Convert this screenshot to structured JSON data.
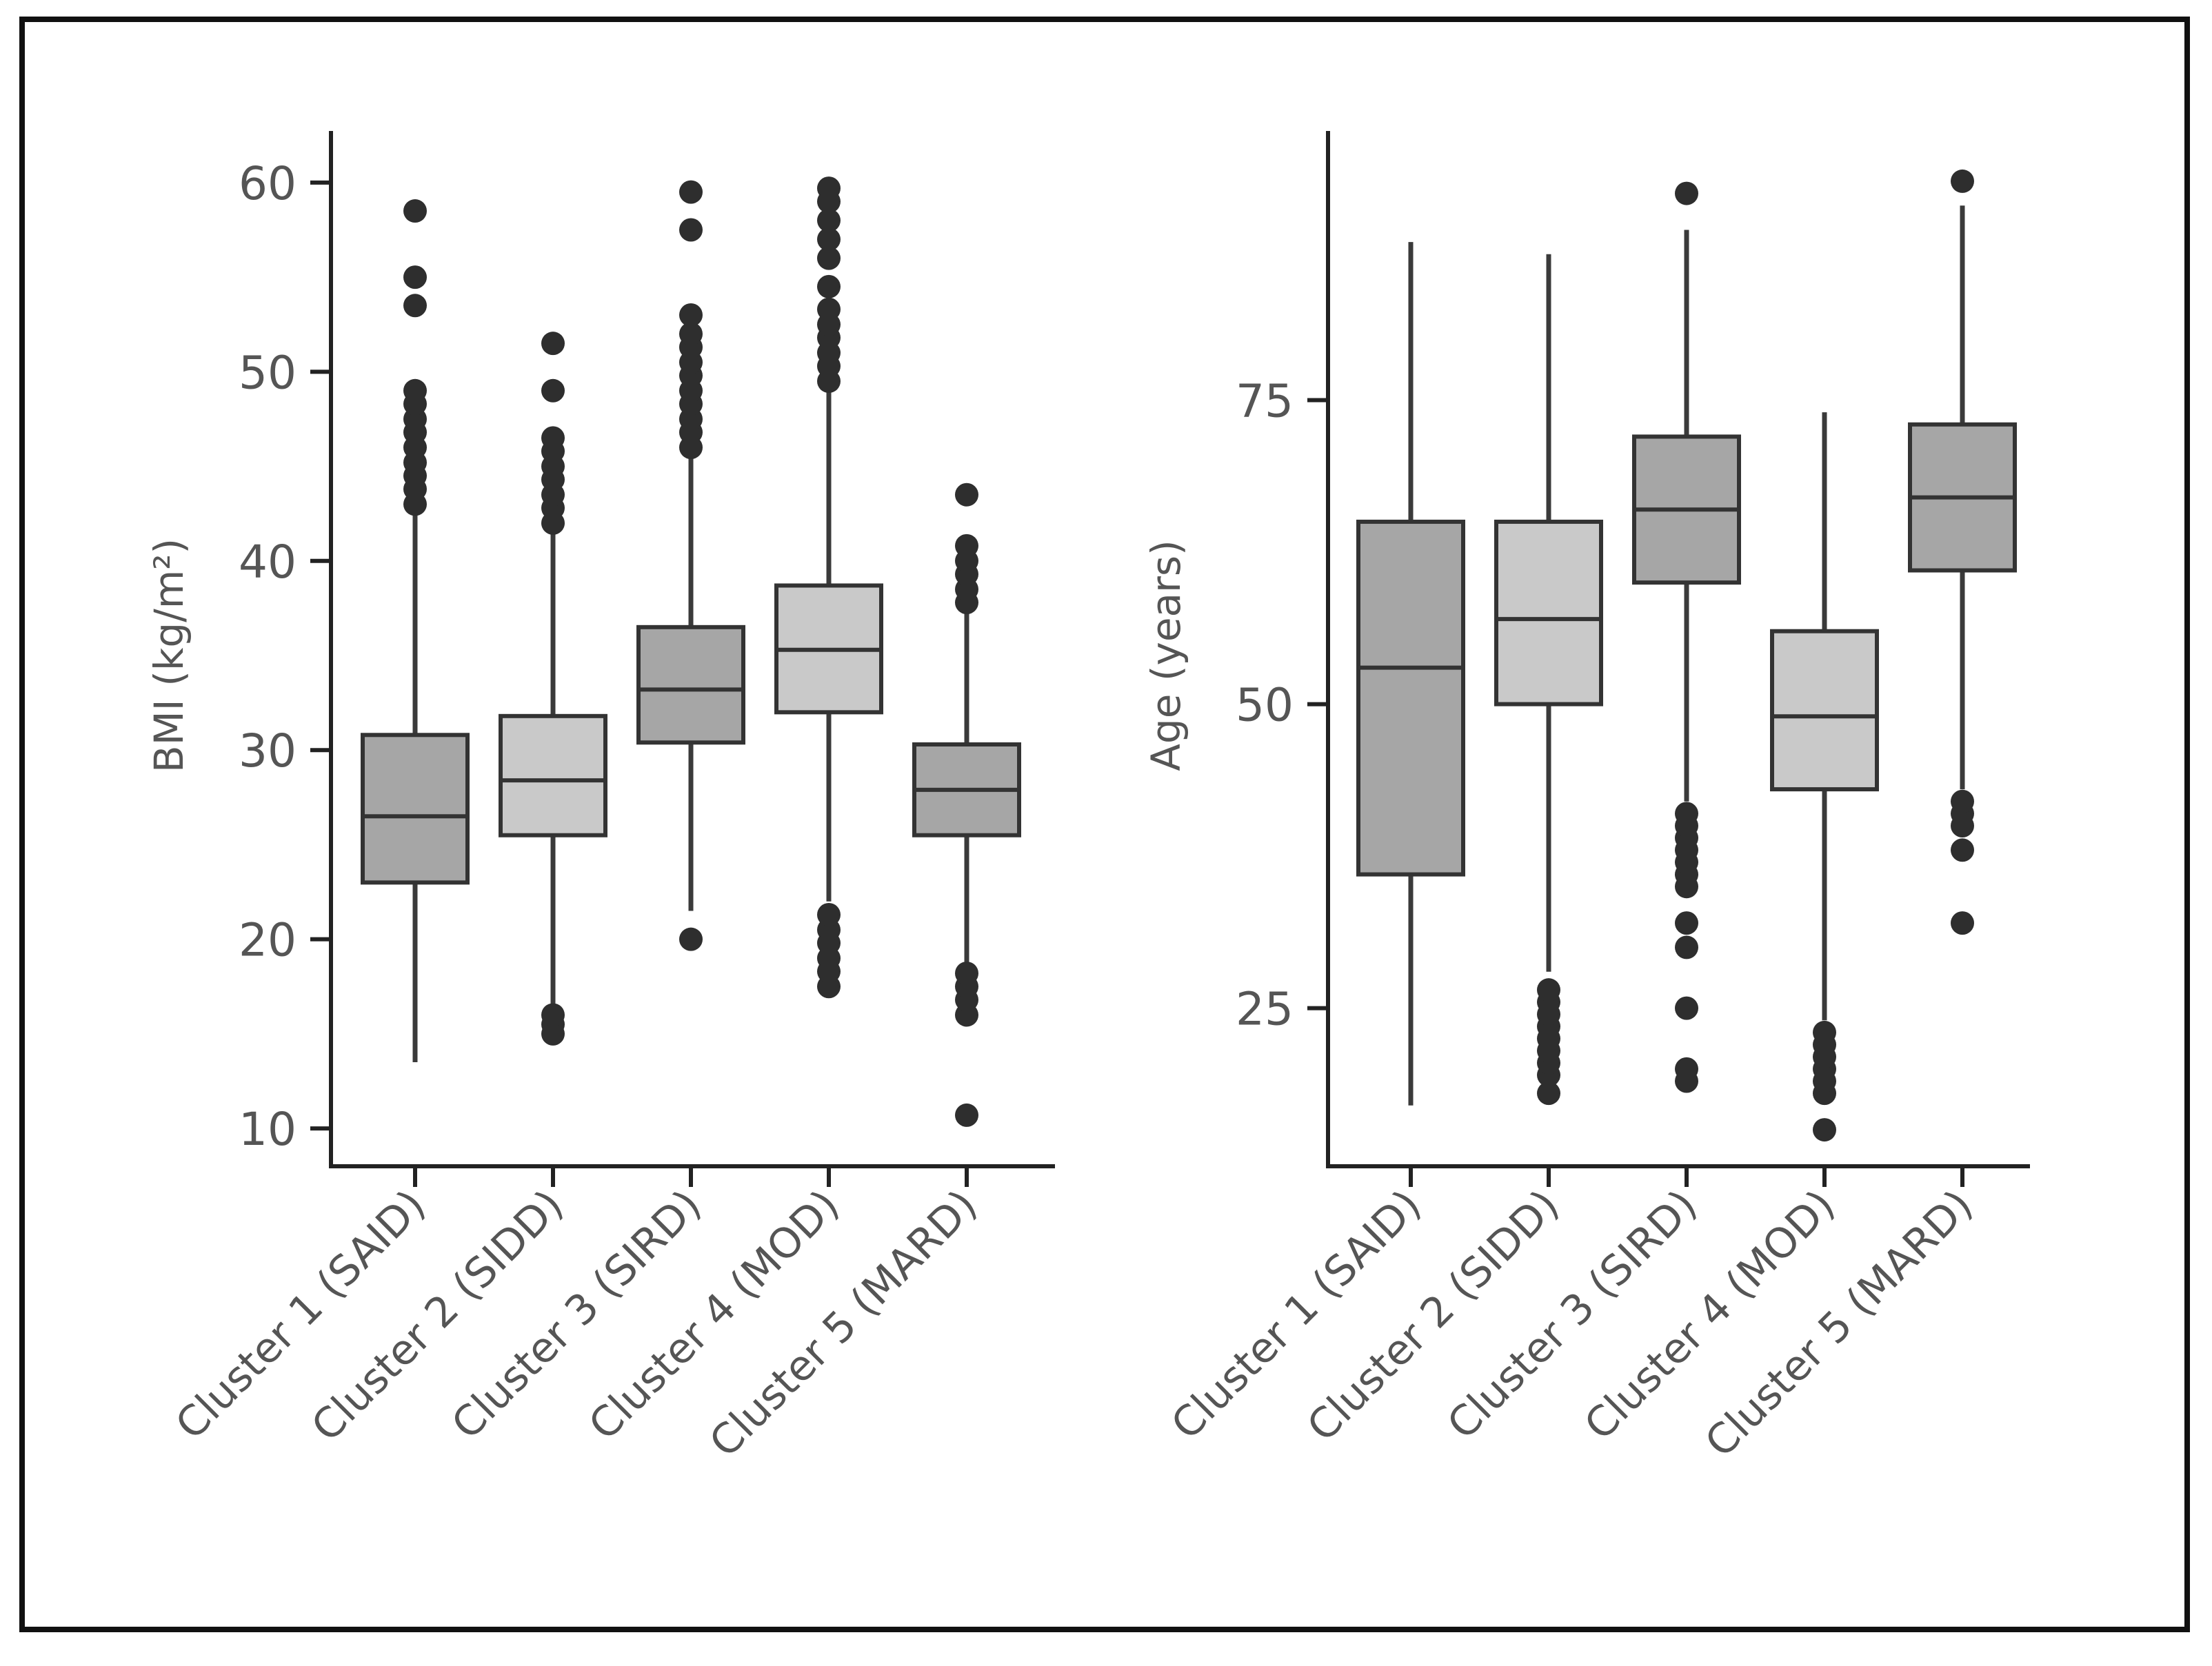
{
  "figure": {
    "colors": {
      "frame": "#111111",
      "axis": "#222222",
      "whisker": "#3a3a3a",
      "box_stroke": "#333333",
      "fill_dark": "#a6a6a6",
      "fill_light": "#c9c9c9",
      "outlier": "#2e2e2e",
      "text": "#555555"
    }
  },
  "chart_data": [
    {
      "type": "box",
      "title": "",
      "xlabel": "",
      "ylabel": "BMI (kg/m²)",
      "ylim": [
        8,
        62
      ],
      "yticks": [
        10,
        20,
        30,
        40,
        50,
        60
      ],
      "ytick_labels": [
        "10",
        "20",
        "30",
        "40",
        "50",
        "60"
      ],
      "categories": [
        "Cluster 1 (SAID)",
        "Cluster 2 (SIDD)",
        "Cluster 3 (SIRD)",
        "Cluster 4 (MOD)",
        "Cluster 5 (MARD)"
      ],
      "boxes": [
        {
          "whisker_low": 13.5,
          "q1": 23.0,
          "median": 26.5,
          "q3": 30.8,
          "whisker_high": 42.5,
          "fill": "dark",
          "outliers": [
            43,
            43.8,
            44.5,
            45.2,
            46,
            46.8,
            47.5,
            48.3,
            49,
            53.5,
            55,
            58.5
          ]
        },
        {
          "whisker_low": 16.0,
          "q1": 25.5,
          "median": 28.4,
          "q3": 31.8,
          "whisker_high": 41.5,
          "fill": "light",
          "outliers": [
            15,
            15.5,
            16,
            42,
            42.8,
            43.5,
            44.3,
            45,
            45.8,
            46.5,
            49,
            51.5
          ]
        },
        {
          "whisker_low": 21.5,
          "q1": 30.4,
          "median": 33.2,
          "q3": 36.5,
          "whisker_high": 45.5,
          "fill": "dark",
          "outliers": [
            20,
            46,
            46.8,
            47.5,
            48.3,
            49,
            49.8,
            50.5,
            51.3,
            52,
            53,
            57.5,
            59.5
          ]
        },
        {
          "whisker_low": 22.0,
          "q1": 32.0,
          "median": 35.3,
          "q3": 38.7,
          "whisker_high": 49.0,
          "fill": "light",
          "outliers": [
            17.5,
            18.3,
            19,
            19.8,
            20.5,
            21.3,
            49.5,
            50.3,
            51,
            51.8,
            52.5,
            53.3,
            54.5,
            56,
            57,
            58,
            59,
            59.7
          ]
        },
        {
          "whisker_low": 18.5,
          "q1": 25.5,
          "median": 27.9,
          "q3": 30.3,
          "whisker_high": 37.5,
          "fill": "dark",
          "outliers": [
            10.7,
            16,
            16.8,
            17.5,
            18.2,
            37.8,
            38.5,
            39.3,
            40,
            40.8,
            43.5
          ]
        }
      ]
    },
    {
      "type": "box",
      "title": "",
      "xlabel": "",
      "ylabel": "Age (years)",
      "ylim": [
        12,
        96
      ],
      "yticks": [
        25,
        50,
        75
      ],
      "ytick_labels": [
        "25",
        "50",
        "75"
      ],
      "categories": [
        "Cluster 1 (SAID)",
        "Cluster 2 (SIDD)",
        "Cluster 3 (SIRD)",
        "Cluster 4 (MOD)",
        "Cluster 5 (MARD)"
      ],
      "boxes": [
        {
          "whisker_low": 17.0,
          "q1": 36.0,
          "median": 53.0,
          "q3": 65.0,
          "whisker_high": 88.0,
          "fill": "dark",
          "outliers": []
        },
        {
          "whisker_low": 28.0,
          "q1": 50.0,
          "median": 57.0,
          "q3": 65.0,
          "whisker_high": 87.0,
          "fill": "light",
          "outliers": [
            18,
            19.5,
            20.5,
            21.5,
            22.5,
            23.5,
            24.5,
            25.5,
            26.5
          ]
        },
        {
          "whisker_low": 42.0,
          "q1": 60.0,
          "median": 66.0,
          "q3": 72.0,
          "whisker_high": 89.0,
          "fill": "dark",
          "outliers": [
            19,
            20,
            25,
            30,
            32,
            35,
            36,
            37,
            38,
            39,
            40,
            41,
            92
          ]
        },
        {
          "whisker_low": 24.0,
          "q1": 43.0,
          "median": 49.0,
          "q3": 56.0,
          "whisker_high": 74.0,
          "fill": "light",
          "outliers": [
            15,
            18,
            19,
            20,
            21,
            22,
            23
          ]
        },
        {
          "whisker_low": 43.0,
          "q1": 61.0,
          "median": 67.0,
          "q3": 73.0,
          "whisker_high": 91.0,
          "fill": "dark",
          "outliers": [
            32,
            38,
            40,
            41,
            42,
            93
          ]
        }
      ]
    }
  ]
}
